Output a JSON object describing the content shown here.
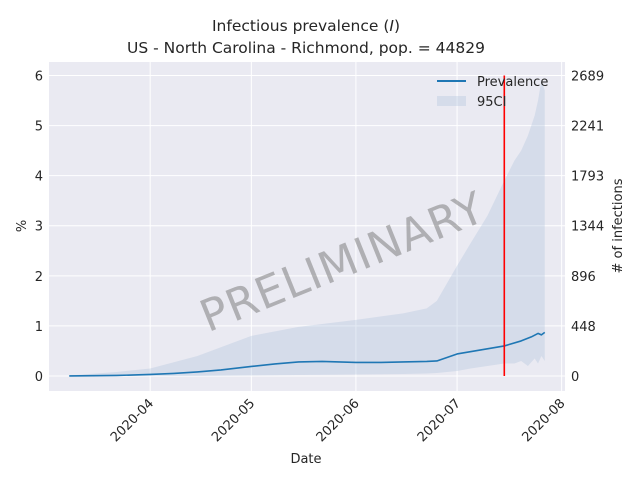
{
  "chart_data": {
    "type": "line",
    "title_line1": "Infectious prevalence (",
    "title_italic": "I",
    "title_line1_end": ")",
    "title_line2": "US - North Carolina - Richmond, pop. = 44829",
    "xlabel": "Date",
    "ylabel_left": "%",
    "ylabel_right": "# of infections",
    "watermark": "PRELIMINARY",
    "xlim": [
      "2020-03-02",
      "2020-08-02"
    ],
    "ylim": [
      -0.3,
      6.27
    ],
    "x_ticks": [
      "2020-04",
      "2020-05",
      "2020-06",
      "2020-07",
      "2020-08"
    ],
    "y_ticks_left": [
      "0",
      "1",
      "2",
      "3",
      "4",
      "5",
      "6"
    ],
    "y_ticks_right": [
      "0",
      "448",
      "896",
      "1344",
      "1793",
      "2241",
      "2689"
    ],
    "vertical_marker": {
      "date": "2020-07-15",
      "color": "#ff0000"
    },
    "grid": true,
    "legend_position": "top-right",
    "series": [
      {
        "name": "Prevalence",
        "color": "#1f77b4",
        "x": [
          "2020-03-08",
          "2020-03-15",
          "2020-03-22",
          "2020-04-01",
          "2020-04-08",
          "2020-04-15",
          "2020-04-22",
          "2020-05-01",
          "2020-05-08",
          "2020-05-15",
          "2020-05-22",
          "2020-06-01",
          "2020-06-08",
          "2020-06-15",
          "2020-06-22",
          "2020-06-25",
          "2020-07-01",
          "2020-07-08",
          "2020-07-15",
          "2020-07-20",
          "2020-07-23",
          "2020-07-25",
          "2020-07-26",
          "2020-07-27"
        ],
        "values": [
          0.0,
          0.005,
          0.01,
          0.03,
          0.05,
          0.08,
          0.12,
          0.19,
          0.24,
          0.28,
          0.29,
          0.27,
          0.27,
          0.28,
          0.29,
          0.3,
          0.44,
          0.52,
          0.6,
          0.7,
          0.78,
          0.85,
          0.82,
          0.87
        ]
      },
      {
        "name": "95CI",
        "color": "#b0c4de",
        "x": [
          "2020-03-08",
          "2020-03-22",
          "2020-04-01",
          "2020-04-15",
          "2020-05-01",
          "2020-05-15",
          "2020-06-01",
          "2020-06-15",
          "2020-06-22",
          "2020-06-25",
          "2020-07-01",
          "2020-07-05",
          "2020-07-10",
          "2020-07-15",
          "2020-07-18",
          "2020-07-20",
          "2020-07-22",
          "2020-07-24",
          "2020-07-25",
          "2020-07-26",
          "2020-07-27"
        ],
        "upper": [
          0.01,
          0.08,
          0.15,
          0.4,
          0.8,
          0.98,
          1.12,
          1.25,
          1.35,
          1.5,
          2.2,
          2.65,
          3.2,
          3.9,
          4.3,
          4.5,
          4.8,
          5.2,
          5.5,
          5.9,
          5.7
        ],
        "lower": [
          0.0,
          0.0,
          0.0,
          0.0,
          0.01,
          0.02,
          0.03,
          0.04,
          0.05,
          0.06,
          0.1,
          0.15,
          0.2,
          0.25,
          0.25,
          0.3,
          0.2,
          0.35,
          0.25,
          0.4,
          0.3
        ]
      }
    ]
  }
}
